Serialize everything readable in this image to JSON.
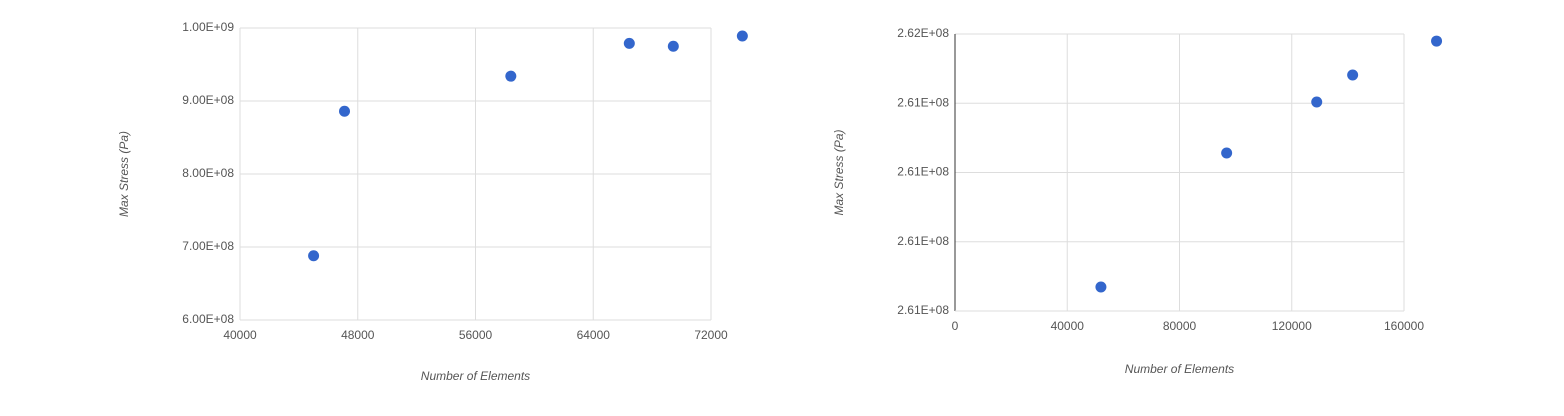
{
  "chart_data": [
    {
      "type": "scatter",
      "x_label": "Number of Elements",
      "y_label": "Max Stress (Pa)",
      "x": [
        45000,
        47100,
        58400,
        66450,
        69440,
        74130
      ],
      "series": [
        {
          "color": "#3366cc",
          "values": [
            688000000,
            886000000,
            934000000,
            979000000,
            975000000,
            989000000
          ]
        }
      ],
      "xlim": [
        40000,
        72000
      ],
      "xticks": [
        40000,
        48000,
        56000,
        64000,
        72000
      ],
      "ylim": [
        600000000,
        1000000000
      ],
      "yticks": [
        {
          "value": 600000000,
          "label": "6.00E+08"
        },
        {
          "value": 700000000,
          "label": "7.00E+08"
        },
        {
          "value": 800000000,
          "label": "8.00E+08"
        },
        {
          "value": 900000000,
          "label": "9.00E+08"
        },
        {
          "value": 1000000000,
          "label": "1.00E+09"
        }
      ],
      "grid": true
    },
    {
      "type": "scatter",
      "x_label": "Number of Elements",
      "y_label": "Max Stress (Pa)",
      "x": [
        52000,
        96800,
        128900,
        141700,
        171600
      ],
      "series": [
        {
          "color": "#3366cc",
          "values": [
            261317300,
            261414100,
            261450900,
            261470400,
            261494900
          ]
        }
      ],
      "xlim": [
        0,
        160000
      ],
      "xticks": [
        0,
        40000,
        80000,
        120000,
        160000
      ],
      "ylim": [
        261300000,
        261500000
      ],
      "yticks": [
        {
          "value": 261300000,
          "label": "2.61E+08"
        },
        {
          "value": 261350000,
          "label": "2.61E+08"
        },
        {
          "value": 261400000,
          "label": "2.61E+08"
        },
        {
          "value": 261450000,
          "label": "2.61E+08"
        },
        {
          "value": 261500000,
          "label": "2.62E+08"
        }
      ],
      "grid": true
    }
  ]
}
